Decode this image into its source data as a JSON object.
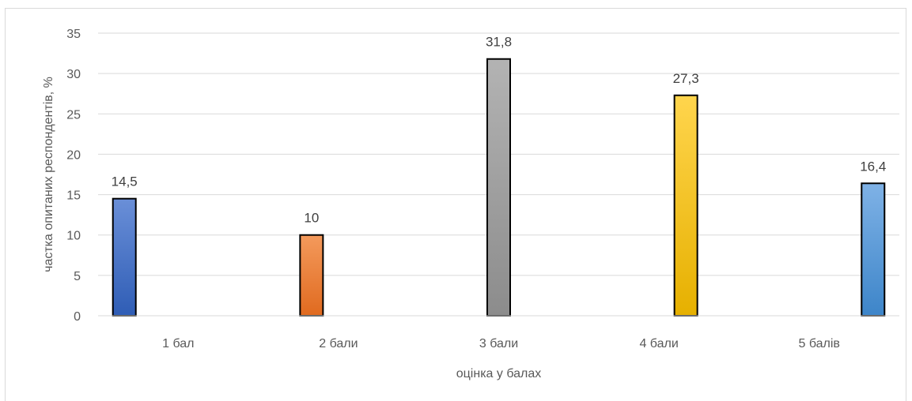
{
  "chart_data": {
    "type": "bar",
    "categories": [
      "1 бал",
      "2 бали",
      "3 бали",
      "4 бали",
      "5 балів"
    ],
    "values": [
      14.5,
      10,
      31.8,
      27.3,
      16.4
    ],
    "value_labels": [
      "14,5",
      "10",
      "31,8",
      "27,3",
      "16,4"
    ],
    "xlabel": "оцінка у  балах",
    "ylabel": "частка опитаних респондентів, %",
    "ylim": [
      0,
      35
    ],
    "yticks": [
      0,
      5,
      10,
      15,
      20,
      25,
      30,
      35
    ],
    "grid": true,
    "legend": "none",
    "colors": [
      {
        "top": "#6a8fd8",
        "bottom": "#2f5db5"
      },
      {
        "top": "#f49a5c",
        "bottom": "#e06a1f"
      },
      {
        "top": "#b3b3b3",
        "bottom": "#8c8c8c"
      },
      {
        "top": "#ffd54d",
        "bottom": "#e6b000"
      },
      {
        "top": "#7fb2e6",
        "bottom": "#3d85c9"
      }
    ]
  }
}
